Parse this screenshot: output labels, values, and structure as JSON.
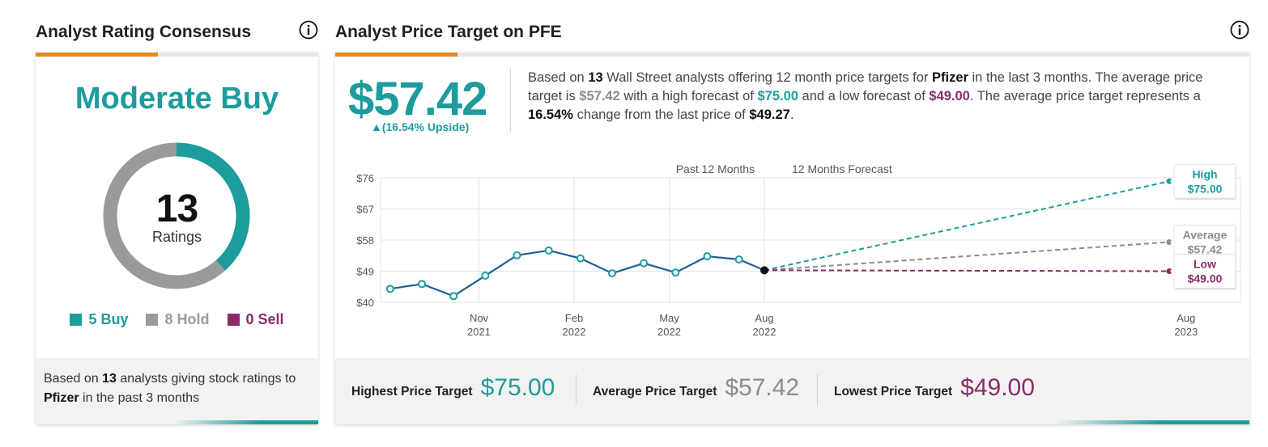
{
  "left": {
    "title": "Analyst Rating Consensus",
    "rating": "Moderate Buy",
    "total_count": "13",
    "total_label": "Ratings",
    "legend": [
      {
        "label": "5 Buy",
        "color": "#1d9c9e",
        "count": 5
      },
      {
        "label": "8 Hold",
        "color": "#9a9a9a",
        "count": 8
      },
      {
        "label": "0 Sell",
        "color": "#8c2a68",
        "count": 0
      }
    ],
    "footer": {
      "prefix": "Based on",
      "count": "13",
      "middle": "analysts giving stock ratings to",
      "company": "Pfizer",
      "suffix": "in the past 3 months"
    }
  },
  "right": {
    "title": "Analyst Price Target on PFE",
    "avg_price": "$57.42",
    "upside": "▲(16.54% Upside)",
    "summary": {
      "p1": "Based on",
      "n": "13",
      "p2": "Wall Street analysts offering 12 month price targets for",
      "company": "Pfizer",
      "p3": "in the last 3 months. The average price target is",
      "avg": "$57.42",
      "p4": "with a high forecast of",
      "high": "$75.00",
      "p5": "and a low forecast of",
      "low": "$49.00",
      "p6": ". The average price target represents a",
      "pct": "16.54%",
      "p7": "change from the last price of",
      "last": "$49.27",
      "p8": "."
    },
    "footer": {
      "high_label": "Highest Price Target",
      "high_value": "$75.00",
      "avg_label": "Average Price Target",
      "avg_value": "$57.42",
      "low_label": "Lowest Price Target",
      "low_value": "$49.00"
    }
  },
  "colors": {
    "teal": "#1d9c9e",
    "gray": "#8c8c8c",
    "plum": "#8c2a68",
    "orange": "#e8891a",
    "line": "#1e5f96"
  },
  "chart_data": {
    "type": "line",
    "section_labels": [
      "Past 12 Months",
      "12 Months Forecast"
    ],
    "y_ticks": [
      "$76",
      "$67",
      "$58",
      "$49",
      "$40"
    ],
    "ylim": [
      40,
      76
    ],
    "x_ticks": [
      {
        "label1": "Nov",
        "label2": "2021",
        "t": 3
      },
      {
        "label1": "Feb",
        "label2": "2022",
        "t": 6
      },
      {
        "label1": "May",
        "label2": "2022",
        "t": 9
      },
      {
        "label1": "Aug",
        "label2": "2022",
        "t": 12
      },
      {
        "label1": "Aug",
        "label2": "2023",
        "t": 24.5
      }
    ],
    "history": [
      {
        "t": 0.2,
        "v": 43.9
      },
      {
        "t": 1.2,
        "v": 45.3
      },
      {
        "t": 2.2,
        "v": 41.8
      },
      {
        "t": 3.2,
        "v": 47.7
      },
      {
        "t": 4.2,
        "v": 53.6
      },
      {
        "t": 5.2,
        "v": 55.0
      },
      {
        "t": 6.2,
        "v": 52.7
      },
      {
        "t": 7.2,
        "v": 48.4
      },
      {
        "t": 8.2,
        "v": 51.3
      },
      {
        "t": 9.2,
        "v": 48.6
      },
      {
        "t": 10.2,
        "v": 53.3
      },
      {
        "t": 11.2,
        "v": 52.4
      },
      {
        "t": 12.0,
        "v": 49.27
      }
    ],
    "forecasts": [
      {
        "name": "High",
        "value": 75.0,
        "label": "$75.00",
        "color": "#1d9c9e"
      },
      {
        "name": "Average",
        "value": 57.42,
        "label": "$57.42",
        "color": "#8c8c8c"
      },
      {
        "name": "Low",
        "value": 49.0,
        "label": "$49.00",
        "color": "#8c2a68"
      }
    ]
  }
}
